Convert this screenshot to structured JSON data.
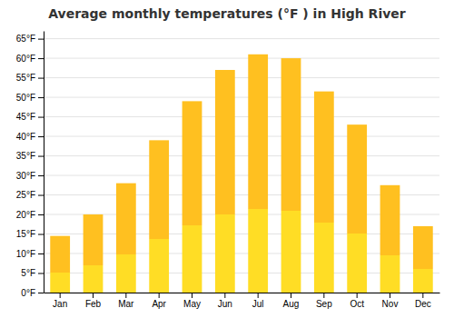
{
  "chart_data": {
    "type": "bar",
    "title": "Average monthly temperatures (°F ) in High River",
    "categories": [
      "Jan",
      "Feb",
      "Mar",
      "Apr",
      "May",
      "Jun",
      "Jul",
      "Aug",
      "Sep",
      "Oct",
      "Nov",
      "Dec"
    ],
    "values": [
      14.5,
      20,
      28,
      39,
      49,
      57,
      61,
      60,
      51.5,
      43,
      27.5,
      17
    ],
    "color": "#FFC020",
    "ylim": [
      0,
      67
    ],
    "yticks": [
      {
        "value": 0,
        "label": "0°F"
      },
      {
        "value": 5,
        "label": "5°F"
      },
      {
        "value": 10,
        "label": "10°F"
      },
      {
        "value": 15,
        "label": "15°F"
      },
      {
        "value": 20,
        "label": "20°F"
      },
      {
        "value": 25,
        "label": "25°F"
      },
      {
        "value": 30,
        "label": "30°F"
      },
      {
        "value": 35,
        "label": "35°F"
      },
      {
        "value": 40,
        "label": "40°F"
      },
      {
        "value": 45,
        "label": "45°F"
      },
      {
        "value": 50,
        "label": "50°F"
      },
      {
        "value": 55,
        "label": "55°F"
      },
      {
        "value": 60,
        "label": "60°F"
      },
      {
        "value": 65,
        "label": "65°F"
      }
    ],
    "grid": true
  }
}
